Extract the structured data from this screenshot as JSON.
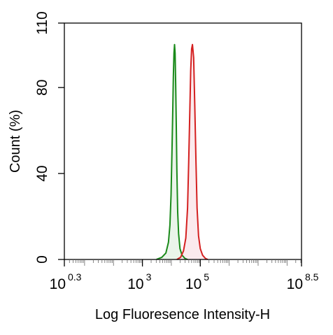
{
  "chart_data": {
    "type": "area",
    "title": "",
    "xlabel": "Log Fluoresence Intensity-H",
    "ylabel": "Count  (%)",
    "x_scale": "log",
    "xlim": [
      2.0,
      316227766
    ],
    "ylim": [
      0,
      110
    ],
    "x_ticks": [
      {
        "base": "10",
        "exp": "0.3",
        "value": 2.0
      },
      {
        "base": "10",
        "exp": "3",
        "value": 1000
      },
      {
        "base": "10",
        "exp": "5",
        "value": 100000
      },
      {
        "base": "10",
        "exp": "8.5",
        "value": 316227766
      }
    ],
    "y_ticks": [
      {
        "label": "0",
        "value": 0
      },
      {
        "label": "40",
        "value": 40
      },
      {
        "label": "80",
        "value": 80
      },
      {
        "label": "110",
        "value": 110
      }
    ],
    "grid": false,
    "legend": "none",
    "series": [
      {
        "color": "#1a8a1a",
        "fill": "#e6f2e6",
        "points": [
          [
            3020,
            0
          ],
          [
            4680,
            1
          ],
          [
            6460,
            3
          ],
          [
            7940,
            8
          ],
          [
            8910,
            16
          ],
          [
            9770,
            30
          ],
          [
            10470,
            50
          ],
          [
            11220,
            70
          ],
          [
            11750,
            85
          ],
          [
            12300,
            96
          ],
          [
            12880,
            100
          ],
          [
            13490,
            96
          ],
          [
            14130,
            82
          ],
          [
            14790,
            62
          ],
          [
            15490,
            42
          ],
          [
            16600,
            22
          ],
          [
            17780,
            12
          ],
          [
            19950,
            5
          ],
          [
            23440,
            2
          ],
          [
            29510,
            0.5
          ],
          [
            36310,
            0
          ]
        ]
      },
      {
        "color": "#d42020",
        "fill": "#fae6ea",
        "points": [
          [
            15490,
            0
          ],
          [
            20890,
            1
          ],
          [
            26300,
            4
          ],
          [
            31620,
            10
          ],
          [
            36310,
            24
          ],
          [
            39810,
            45
          ],
          [
            43650,
            70
          ],
          [
            46770,
            88
          ],
          [
            50120,
            98
          ],
          [
            53700,
            100
          ],
          [
            58880,
            94
          ],
          [
            64570,
            72
          ],
          [
            70790,
            46
          ],
          [
            77620,
            24
          ],
          [
            87100,
            11
          ],
          [
            100000,
            5
          ],
          [
            120230,
            2
          ],
          [
            151360,
            0.5
          ],
          [
            181970,
            0
          ]
        ]
      }
    ]
  }
}
